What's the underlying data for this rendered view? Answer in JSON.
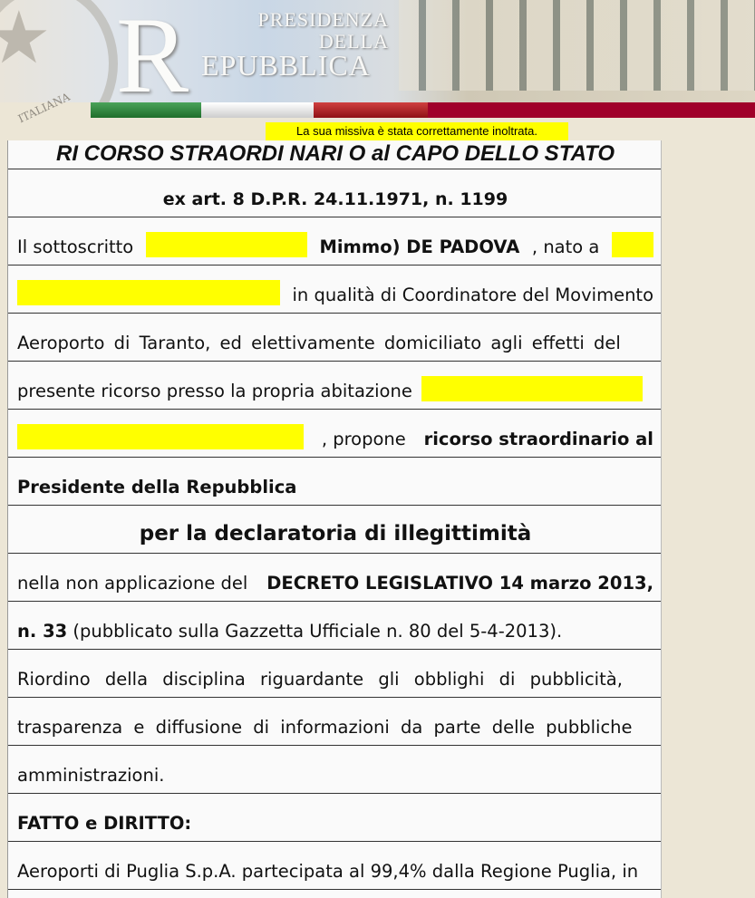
{
  "header": {
    "logo_letter": "R",
    "logo_line1": "PRESIDENZA",
    "logo_line2": "DELLA",
    "logo_line3": "EPUBBLICA",
    "emblem_text": "ITALIANA",
    "tricolor": [
      "#2e8b3a",
      "#e6e6e6",
      "#b52025",
      "#a0002a"
    ]
  },
  "notice": "La sua missiva è stata correttamente inoltrata.",
  "document": {
    "title": "RI CORSO STRAORDI NARI O al CAPO DELLO STATO",
    "subtitle": "ex art. 8 D.P.R. 24.11.1971, n. 1199",
    "l1a": "Il sottoscritto",
    "l1b": "Mimmo) DE PADOVA",
    ", nato a": "",
    "l1c": ", nato a",
    "l2": "in qualità di Coordinatore del Movimento",
    "l3": "Aeroporto di Taranto, ed elettivamente domiciliato agli effetti del",
    "l4": "presente ricorso presso la propria abitazione",
    "l5a": ", propone",
    "l5b": "ricorso straordinario al",
    "l6": "Presidente della Repubblica",
    "l7": "per la declaratoria di illegittimità",
    "l8a": "nella non applicazione del",
    "l8b": "DECRETO LEGISLATIVO 14 marzo 2013,",
    "l9a": "n. 33",
    "l9b": "(pubblicato sulla Gazzetta Ufficiale n. 80 del 5-4-2013).",
    "l10": "Riordino della disciplina riguardante gli obblighi di pubblicità,",
    "l11": "trasparenza e diffusione di informazioni da parte delle pubbliche",
    "l12": "amministrazioni.",
    "l13": "FATTO e DIRITTO:",
    "l14": "Aeroporti di Puglia S.p.A. partecipata al 99,4% dalla Regione Puglia, in"
  }
}
